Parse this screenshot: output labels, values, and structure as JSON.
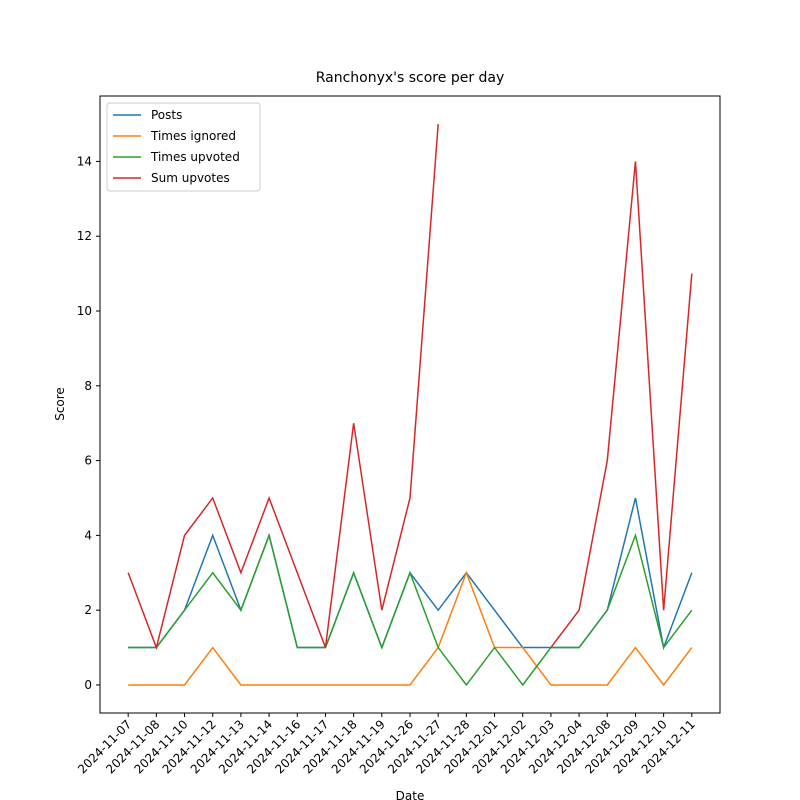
{
  "chart_data": {
    "type": "line",
    "title": "Ranchonyx's score per day",
    "xlabel": "Date",
    "ylabel": "Score",
    "categories": [
      "2024-11-07",
      "2024-11-08",
      "2024-11-10",
      "2024-11-12",
      "2024-11-13",
      "2024-11-14",
      "2024-11-16",
      "2024-11-17",
      "2024-11-18",
      "2024-11-19",
      "2024-11-26",
      "2024-11-27",
      "2024-11-28",
      "2024-12-01",
      "2024-12-02",
      "2024-12-03",
      "2024-12-04",
      "2024-12-08",
      "2024-12-09",
      "2024-12-10",
      "2024-12-11"
    ],
    "series": [
      {
        "name": "Posts",
        "color": "#1f77b4",
        "values": [
          1,
          1,
          2,
          4,
          2,
          4,
          1,
          1,
          3,
          1,
          3,
          2,
          3,
          2,
          1,
          1,
          1,
          2,
          5,
          1,
          3
        ]
      },
      {
        "name": "Times ignored",
        "color": "#ff7f0e",
        "values": [
          0,
          0,
          0,
          1,
          0,
          0,
          0,
          0,
          0,
          0,
          0,
          1,
          3,
          1,
          1,
          0,
          0,
          0,
          1,
          0,
          1
        ]
      },
      {
        "name": "Times upvoted",
        "color": "#2ca02c",
        "values": [
          1,
          1,
          2,
          3,
          2,
          4,
          1,
          1,
          3,
          1,
          3,
          1,
          0,
          1,
          0,
          1,
          1,
          2,
          4,
          1,
          2
        ]
      },
      {
        "name": "Sum upvotes",
        "color": "#d62728",
        "values": [
          3,
          1,
          4,
          5,
          3,
          5,
          3,
          1,
          7,
          2,
          5,
          15,
          null,
          null,
          null,
          1,
          2,
          6,
          14,
          2,
          11
        ]
      }
    ],
    "ylim": [
      -0.75,
      15.75
    ],
    "yticks": [
      0,
      2,
      4,
      6,
      8,
      10,
      12,
      14
    ],
    "legend": "upper left"
  }
}
